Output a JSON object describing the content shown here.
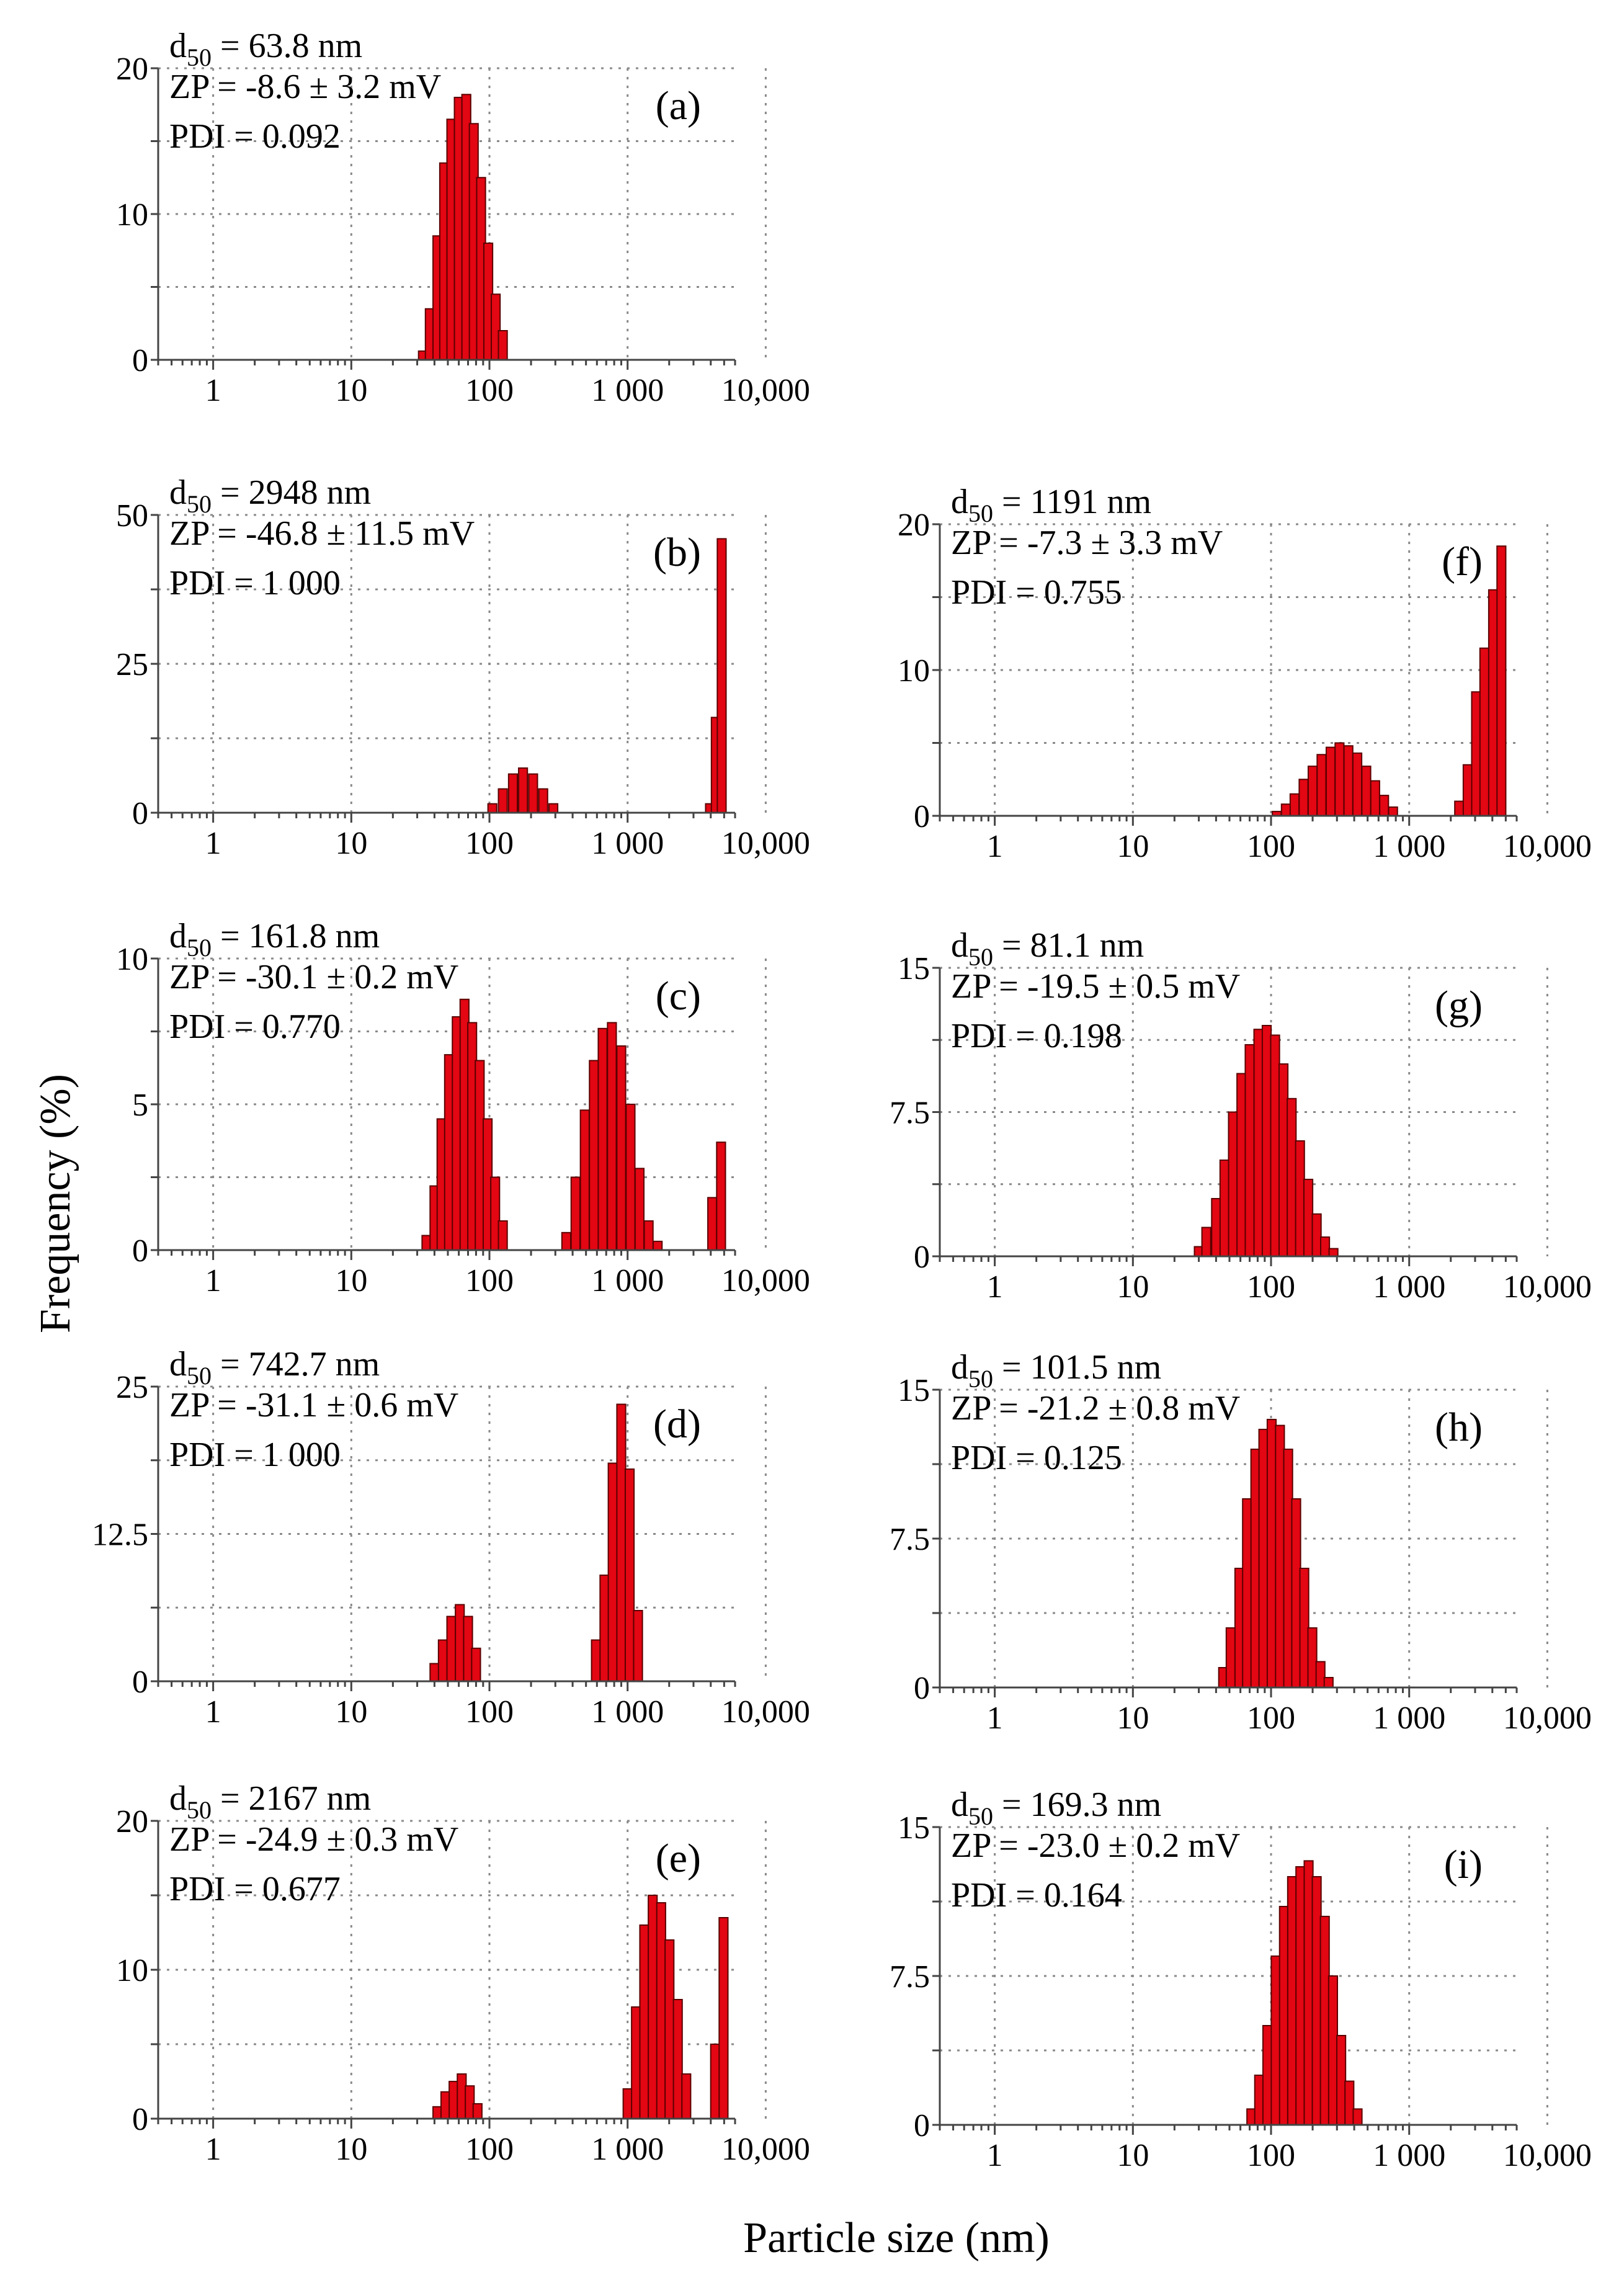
{
  "figure": {
    "xlabel": "Particle size (nm)",
    "ylabel": "Frequency (%)"
  },
  "chart_data": [
    {
      "id": "a",
      "type": "bar",
      "panel_label": "(a)",
      "d50_prefix": "d",
      "d50_sub": "50",
      "d50_text": " = 63.8 nm",
      "zp_text": "ZP = -8.6 ± 3.2 mV",
      "pdi_text": "PDI = 0.092",
      "xscale": "log",
      "xlim": [
        0.4,
        6000
      ],
      "xticks": [
        1,
        10,
        100,
        1000,
        10000
      ],
      "xtick_labels": [
        "1",
        "10",
        "100",
        "1 000",
        "10,000"
      ],
      "ylim": [
        0,
        20
      ],
      "yticks": [
        0,
        10,
        20
      ],
      "ytick_labels": [
        "0",
        "10",
        "20"
      ],
      "bins": [
        {
          "x": 33,
          "y": 0.6
        },
        {
          "x": 37,
          "y": 3.5
        },
        {
          "x": 42,
          "y": 8.5
        },
        {
          "x": 47,
          "y": 13.5
        },
        {
          "x": 53,
          "y": 16.5
        },
        {
          "x": 60,
          "y": 18.0
        },
        {
          "x": 68,
          "y": 18.2
        },
        {
          "x": 77,
          "y": 16.2
        },
        {
          "x": 87,
          "y": 12.5
        },
        {
          "x": 98,
          "y": 8.0
        },
        {
          "x": 111,
          "y": 4.5
        },
        {
          "x": 125,
          "y": 2.0
        }
      ]
    },
    {
      "id": "b",
      "type": "bar",
      "panel_label": "(b)",
      "d50_prefix": "d",
      "d50_sub": "50",
      "d50_text": " = 2948 nm",
      "zp_text": "ZP = -46.8 ± 11.5 mV",
      "pdi_text": "PDI = 1 000",
      "xscale": "log",
      "xlim": [
        0.4,
        6000
      ],
      "xticks": [
        1,
        10,
        100,
        1000,
        10000
      ],
      "xtick_labels": [
        "1",
        "10",
        "100",
        "1 000",
        "10,000"
      ],
      "ylim": [
        0,
        50
      ],
      "yticks": [
        0,
        25,
        50
      ],
      "ytick_labels": [
        "0",
        "25",
        "50"
      ],
      "bins": [
        {
          "x": 105,
          "y": 1.5
        },
        {
          "x": 125,
          "y": 4.0
        },
        {
          "x": 148,
          "y": 6.5
        },
        {
          "x": 175,
          "y": 7.5
        },
        {
          "x": 207,
          "y": 6.5
        },
        {
          "x": 245,
          "y": 4.0
        },
        {
          "x": 290,
          "y": 1.5
        },
        {
          "x": 3950,
          "y": 1.5
        },
        {
          "x": 4350,
          "y": 16.0
        },
        {
          "x": 4800,
          "y": 46.0
        }
      ]
    },
    {
      "id": "c",
      "type": "bar",
      "panel_label": "(c)",
      "d50_prefix": "d",
      "d50_sub": "50",
      "d50_text": " = 161.8 nm",
      "zp_text": "ZP = -30.1 ± 0.2 mV",
      "pdi_text": "PDI = 0.770",
      "xscale": "log",
      "xlim": [
        0.4,
        6000
      ],
      "xticks": [
        1,
        10,
        100,
        1000,
        10000
      ],
      "xtick_labels": [
        "1",
        "10",
        "100",
        "1 000",
        "10,000"
      ],
      "ylim": [
        0,
        10
      ],
      "yticks": [
        0,
        5,
        10
      ],
      "ytick_labels": [
        "0",
        "5",
        "10"
      ],
      "bins": [
        {
          "x": 35,
          "y": 0.5
        },
        {
          "x": 40,
          "y": 2.2
        },
        {
          "x": 45,
          "y": 4.5
        },
        {
          "x": 51,
          "y": 6.7
        },
        {
          "x": 58,
          "y": 8.0
        },
        {
          "x": 66,
          "y": 8.6
        },
        {
          "x": 75,
          "y": 7.8
        },
        {
          "x": 85,
          "y": 6.5
        },
        {
          "x": 97,
          "y": 4.5
        },
        {
          "x": 110,
          "y": 2.5
        },
        {
          "x": 125,
          "y": 1.0
        },
        {
          "x": 360,
          "y": 0.6
        },
        {
          "x": 420,
          "y": 2.5
        },
        {
          "x": 490,
          "y": 4.8
        },
        {
          "x": 570,
          "y": 6.5
        },
        {
          "x": 660,
          "y": 7.6
        },
        {
          "x": 770,
          "y": 7.8
        },
        {
          "x": 900,
          "y": 7.0
        },
        {
          "x": 1050,
          "y": 5.0
        },
        {
          "x": 1220,
          "y": 2.8
        },
        {
          "x": 1420,
          "y": 1.0
        },
        {
          "x": 1650,
          "y": 0.3
        },
        {
          "x": 4100,
          "y": 1.8
        },
        {
          "x": 4750,
          "y": 3.7
        }
      ]
    },
    {
      "id": "d",
      "type": "bar",
      "panel_label": "(d)",
      "d50_prefix": "d",
      "d50_sub": "50",
      "d50_text": " = 742.7 nm",
      "zp_text": "ZP = -31.1 ± 0.6 mV",
      "pdi_text": "PDI = 1 000",
      "xscale": "log",
      "xlim": [
        0.4,
        6000
      ],
      "xticks": [
        1,
        10,
        100,
        1000,
        10000
      ],
      "xtick_labels": [
        "1",
        "10",
        "100",
        "1 000",
        "10,000"
      ],
      "ylim": [
        0,
        25
      ],
      "yticks": [
        0,
        12.5,
        25
      ],
      "ytick_labels": [
        "0",
        "12.5",
        "25"
      ],
      "bins": [
        {
          "x": 40,
          "y": 1.5
        },
        {
          "x": 46,
          "y": 3.5
        },
        {
          "x": 53,
          "y": 5.5
        },
        {
          "x": 61,
          "y": 6.5
        },
        {
          "x": 70,
          "y": 5.5
        },
        {
          "x": 80,
          "y": 2.8
        },
        {
          "x": 590,
          "y": 3.5
        },
        {
          "x": 680,
          "y": 9.0
        },
        {
          "x": 780,
          "y": 18.5
        },
        {
          "x": 900,
          "y": 23.5
        },
        {
          "x": 1035,
          "y": 18.0
        },
        {
          "x": 1190,
          "y": 6.0
        }
      ]
    },
    {
      "id": "e",
      "type": "bar",
      "panel_label": "(e)",
      "d50_prefix": "d",
      "d50_sub": "50",
      "d50_text": " = 2167 nm",
      "zp_text": "ZP = -24.9 ± 0.3 mV",
      "pdi_text": "PDI = 0.677",
      "xscale": "log",
      "xlim": [
        0.4,
        6000
      ],
      "xticks": [
        1,
        10,
        100,
        1000,
        10000
      ],
      "xtick_labels": [
        "1",
        "10",
        "100",
        "1 000",
        "10,000"
      ],
      "ylim": [
        0,
        20
      ],
      "yticks": [
        0,
        10,
        20
      ],
      "ytick_labels": [
        "0",
        "10",
        "20"
      ],
      "bins": [
        {
          "x": 42,
          "y": 0.8
        },
        {
          "x": 48,
          "y": 1.8
        },
        {
          "x": 55,
          "y": 2.5
        },
        {
          "x": 63,
          "y": 3.0
        },
        {
          "x": 72,
          "y": 2.2
        },
        {
          "x": 82,
          "y": 1.0
        },
        {
          "x": 1000,
          "y": 2.0
        },
        {
          "x": 1150,
          "y": 7.5
        },
        {
          "x": 1320,
          "y": 13.0
        },
        {
          "x": 1520,
          "y": 15.0
        },
        {
          "x": 1750,
          "y": 14.5
        },
        {
          "x": 2010,
          "y": 12.0
        },
        {
          "x": 2310,
          "y": 8.0
        },
        {
          "x": 2660,
          "y": 3.0
        },
        {
          "x": 4300,
          "y": 5.0
        },
        {
          "x": 4950,
          "y": 13.5
        }
      ]
    },
    {
      "id": "f",
      "type": "bar",
      "panel_label": "(f)",
      "d50_prefix": "d",
      "d50_sub": "50",
      "d50_text": " = 1191 nm",
      "zp_text": "ZP = -7.3 ± 3.3 mV",
      "pdi_text": "PDI = 0.755",
      "xscale": "log",
      "xlim": [
        0.4,
        6000
      ],
      "xticks": [
        1,
        10,
        100,
        1000,
        10000
      ],
      "xtick_labels": [
        "1",
        "10",
        "100",
        "1 000",
        "10,000"
      ],
      "ylim": [
        0,
        20
      ],
      "yticks": [
        0,
        10,
        20
      ],
      "ytick_labels": [
        "0",
        "10",
        "20"
      ],
      "bins": [
        {
          "x": 110,
          "y": 0.3
        },
        {
          "x": 128,
          "y": 0.8
        },
        {
          "x": 148,
          "y": 1.5
        },
        {
          "x": 172,
          "y": 2.5
        },
        {
          "x": 200,
          "y": 3.4
        },
        {
          "x": 232,
          "y": 4.2
        },
        {
          "x": 270,
          "y": 4.7
        },
        {
          "x": 313,
          "y": 5.0
        },
        {
          "x": 363,
          "y": 4.8
        },
        {
          "x": 421,
          "y": 4.3
        },
        {
          "x": 489,
          "y": 3.4
        },
        {
          "x": 567,
          "y": 2.4
        },
        {
          "x": 658,
          "y": 1.4
        },
        {
          "x": 764,
          "y": 0.6
        },
        {
          "x": 2300,
          "y": 1.0
        },
        {
          "x": 2650,
          "y": 3.5
        },
        {
          "x": 3050,
          "y": 8.5
        },
        {
          "x": 3500,
          "y": 11.5
        },
        {
          "x": 4050,
          "y": 15.5
        },
        {
          "x": 4650,
          "y": 18.5
        }
      ]
    },
    {
      "id": "g",
      "type": "bar",
      "panel_label": "(g)",
      "d50_prefix": "d",
      "d50_sub": "50",
      "d50_text": " = 81.1 nm",
      "zp_text": "ZP = -19.5 ± 0.5 mV",
      "pdi_text": "PDI = 0.198",
      "xscale": "log",
      "xlim": [
        0.4,
        6000
      ],
      "xticks": [
        1,
        10,
        100,
        1000,
        10000
      ],
      "xtick_labels": [
        "1",
        "10",
        "100",
        "1 000",
        "10,000"
      ],
      "ylim": [
        0,
        15
      ],
      "yticks": [
        0,
        7.5,
        15
      ],
      "ytick_labels": [
        "0",
        "7.5",
        "15"
      ],
      "bins": [
        {
          "x": 30,
          "y": 0.5
        },
        {
          "x": 34,
          "y": 1.5
        },
        {
          "x": 40,
          "y": 3.0
        },
        {
          "x": 46,
          "y": 5.0
        },
        {
          "x": 53,
          "y": 7.5
        },
        {
          "x": 61,
          "y": 9.5
        },
        {
          "x": 70,
          "y": 11.0
        },
        {
          "x": 81,
          "y": 11.8
        },
        {
          "x": 93,
          "y": 12.0
        },
        {
          "x": 107,
          "y": 11.5
        },
        {
          "x": 123,
          "y": 10.0
        },
        {
          "x": 141,
          "y": 8.2
        },
        {
          "x": 162,
          "y": 6.0
        },
        {
          "x": 186,
          "y": 4.0
        },
        {
          "x": 214,
          "y": 2.2
        },
        {
          "x": 246,
          "y": 1.0
        },
        {
          "x": 283,
          "y": 0.4
        }
      ]
    },
    {
      "id": "h",
      "type": "bar",
      "panel_label": "(h)",
      "d50_prefix": "d",
      "d50_sub": "50",
      "d50_text": " = 101.5 nm",
      "zp_text": "ZP = -21.2 ± 0.8 mV",
      "pdi_text": "PDI = 0.125",
      "xscale": "log",
      "xlim": [
        0.4,
        6000
      ],
      "xticks": [
        1,
        10,
        100,
        1000,
        10000
      ],
      "xtick_labels": [
        "1",
        "10",
        "100",
        "1 000",
        "10,000"
      ],
      "ylim": [
        0,
        15
      ],
      "yticks": [
        0,
        7.5,
        15
      ],
      "ytick_labels": [
        "0",
        "7.5",
        "15"
      ],
      "bins": [
        {
          "x": 45,
          "y": 1.0
        },
        {
          "x": 51,
          "y": 3.0
        },
        {
          "x": 59,
          "y": 6.0
        },
        {
          "x": 67,
          "y": 9.5
        },
        {
          "x": 77,
          "y": 12.0
        },
        {
          "x": 88,
          "y": 13.0
        },
        {
          "x": 101,
          "y": 13.5
        },
        {
          "x": 116,
          "y": 13.2
        },
        {
          "x": 133,
          "y": 12.0
        },
        {
          "x": 152,
          "y": 9.5
        },
        {
          "x": 174,
          "y": 6.0
        },
        {
          "x": 199,
          "y": 3.0
        },
        {
          "x": 228,
          "y": 1.3
        },
        {
          "x": 261,
          "y": 0.5
        }
      ]
    },
    {
      "id": "i",
      "type": "bar",
      "panel_label": "(i)",
      "d50_prefix": "d",
      "d50_sub": "50",
      "d50_text": " = 169.3 nm",
      "zp_text": "ZP = -23.0 ± 0.2 mV",
      "pdi_text": "PDI = 0.164",
      "xscale": "log",
      "xlim": [
        0.4,
        6000
      ],
      "xticks": [
        1,
        10,
        100,
        1000,
        10000
      ],
      "xtick_labels": [
        "1",
        "10",
        "100",
        "1 000",
        "10,000"
      ],
      "ylim": [
        0,
        15
      ],
      "yticks": [
        0,
        7.5,
        15
      ],
      "ytick_labels": [
        "0",
        "7.5",
        "15"
      ],
      "bins": [
        {
          "x": 72,
          "y": 0.8
        },
        {
          "x": 82,
          "y": 2.5
        },
        {
          "x": 94,
          "y": 5.0
        },
        {
          "x": 108,
          "y": 8.5
        },
        {
          "x": 124,
          "y": 11.0
        },
        {
          "x": 142,
          "y": 12.5
        },
        {
          "x": 163,
          "y": 13.0
        },
        {
          "x": 187,
          "y": 13.3
        },
        {
          "x": 214,
          "y": 12.5
        },
        {
          "x": 245,
          "y": 10.5
        },
        {
          "x": 281,
          "y": 7.5
        },
        {
          "x": 322,
          "y": 4.5
        },
        {
          "x": 369,
          "y": 2.2
        },
        {
          "x": 423,
          "y": 0.8
        }
      ]
    }
  ]
}
